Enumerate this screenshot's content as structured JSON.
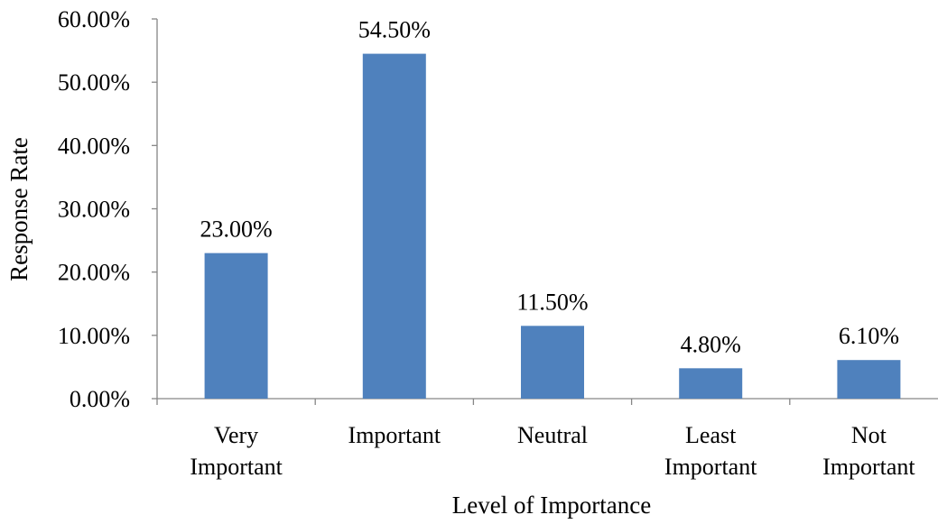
{
  "chart_data": {
    "type": "bar",
    "categories": [
      [
        "Very",
        "Important"
      ],
      [
        "Important"
      ],
      [
        "Neutral"
      ],
      [
        "Least",
        "Important"
      ],
      [
        "Not",
        "Important"
      ]
    ],
    "values": [
      23.0,
      54.5,
      11.5,
      4.8,
      6.1
    ],
    "data_labels": [
      "23.00%",
      "54.50%",
      "11.50%",
      "4.80%",
      "6.10%"
    ],
    "yticks": [
      0,
      10,
      20,
      30,
      40,
      50,
      60
    ],
    "ytick_labels": [
      "0.00%",
      "10.00%",
      "20.00%",
      "30.00%",
      "40.00%",
      "50.00%",
      "60.00%"
    ],
    "ylim": [
      0,
      60
    ],
    "xlabel": "Level of Importance",
    "ylabel": "Response Rate",
    "title": "",
    "grid": false,
    "legend": "none",
    "bar_color": "#4F81BD"
  }
}
